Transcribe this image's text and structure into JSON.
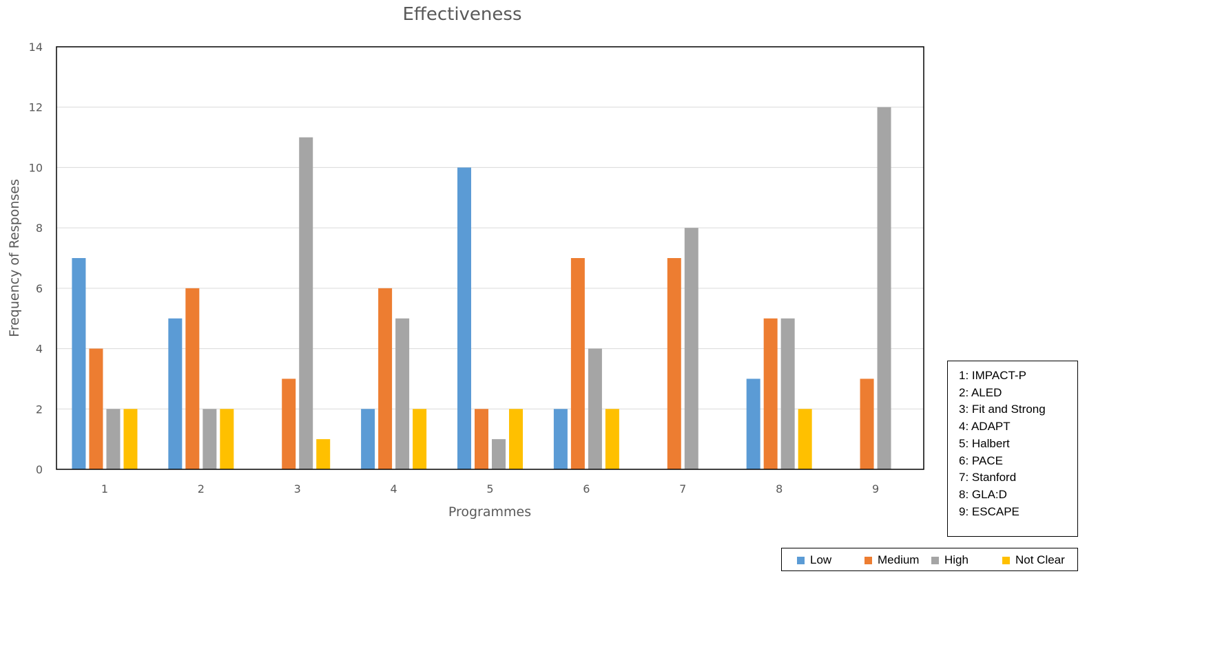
{
  "chart_data": {
    "type": "bar",
    "title": "Effectiveness",
    "xlabel": "Programmes",
    "ylabel": "Frequency of Responses",
    "categories": [
      "1",
      "2",
      "3",
      "4",
      "5",
      "6",
      "7",
      "8",
      "9"
    ],
    "ylim": [
      0,
      14
    ],
    "yticks": [
      0,
      2,
      4,
      6,
      8,
      10,
      12,
      14
    ],
    "grid": true,
    "legend_position": "bottom-right",
    "series": [
      {
        "name": "Low",
        "color": "#5B9BD5",
        "values": [
          7,
          5,
          0,
          2,
          10,
          2,
          0,
          3,
          0
        ]
      },
      {
        "name": "Medium",
        "color": "#ED7D31",
        "values": [
          4,
          6,
          3,
          6,
          2,
          7,
          7,
          5,
          3
        ]
      },
      {
        "name": "High",
        "color": "#A5A5A5",
        "values": [
          2,
          2,
          11,
          5,
          1,
          4,
          8,
          5,
          12
        ]
      },
      {
        "name": "Not Clear",
        "color": "#FFC000",
        "values": [
          2,
          2,
          1,
          2,
          2,
          2,
          0,
          2,
          0
        ]
      }
    ],
    "programme_key": [
      "1: IMPACT-P",
      "2: ALED",
      "3: Fit and Strong",
      "4: ADAPT",
      "5: Halbert",
      "6: PACE",
      "7: Stanford",
      "8: GLA:D",
      "9: ESCAPE"
    ]
  }
}
